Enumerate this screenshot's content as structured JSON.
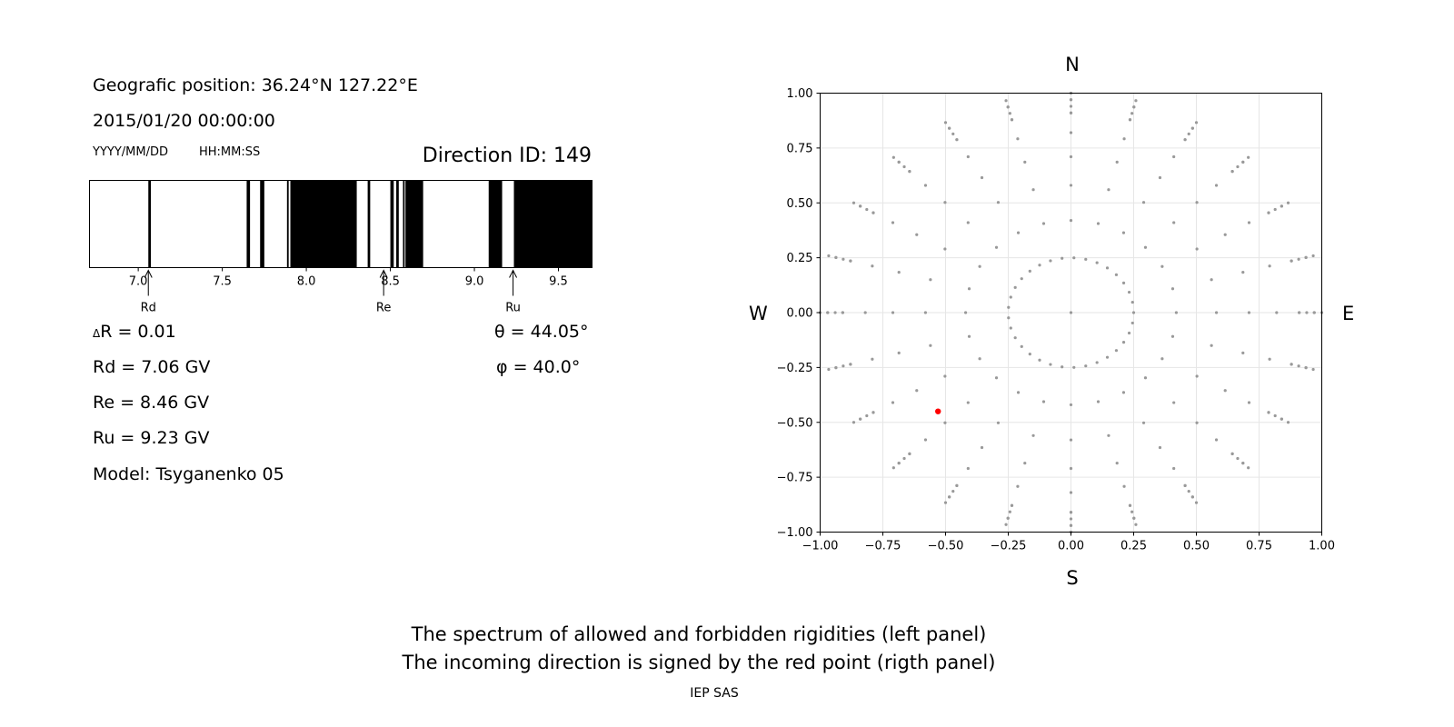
{
  "left_panel": {
    "position_text": "Geografic position: 36.24°N 127.22°E",
    "datetime_text": "2015/01/20 00:00:00",
    "date_format": "YYYY/MM/DD",
    "time_format": "HH:MM:SS",
    "direction_id": "Direction ID: 149",
    "delta_r_symbol": "Δ",
    "delta_r": "R = 0.01",
    "rd": "Rd = 7.06 GV",
    "re": "Re = 8.46 GV",
    "ru": "Ru = 9.23 GV",
    "model": "Model: Tsyganenko 05",
    "theta_symbol": "θ",
    "theta": "= 44.05°",
    "phi_symbol": "φ",
    "phi": "= 40.0°"
  },
  "right_panel": {
    "north": "N",
    "south": "S",
    "west": "W",
    "east": "E"
  },
  "footer": {
    "caption_line1": "The spectrum of allowed and forbidden rigidities (left panel)",
    "caption_line2": "The incoming direction is signed by the red point (rigth panel)",
    "credit": "IEP SAS"
  },
  "colors": {
    "forbidden": "#000000",
    "allowed": "#ffffff",
    "grid_points": "#999999",
    "selected_point": "#ff0000",
    "grid_lines": "#e6e6e6"
  },
  "chart_data": [
    {
      "type": "bar",
      "name": "rigidity-spectrum",
      "xlim": [
        6.71,
        9.7
      ],
      "xticks": [
        7.0,
        7.5,
        8.0,
        8.5,
        9.0,
        9.5
      ],
      "xtick_labels": [
        "7.0",
        "7.5",
        "8.0",
        "8.5",
        "9.0",
        "9.5"
      ],
      "forbidden_intervals": [
        [
          7.06,
          7.075
        ],
        [
          7.645,
          7.665
        ],
        [
          7.725,
          7.75
        ],
        [
          7.885,
          7.895
        ],
        [
          7.905,
          8.3
        ],
        [
          8.365,
          8.38
        ],
        [
          8.5,
          8.52
        ],
        [
          8.535,
          8.55
        ],
        [
          8.575,
          8.585
        ],
        [
          8.59,
          8.695
        ],
        [
          9.085,
          9.165
        ],
        [
          9.235,
          9.7
        ]
      ],
      "markers": [
        {
          "label": "Rd",
          "value": 7.06
        },
        {
          "label": "Re",
          "value": 8.46
        },
        {
          "label": "Ru",
          "value": 9.23
        }
      ]
    },
    {
      "type": "scatter",
      "name": "incoming-directions",
      "xlim": [
        -1.0,
        1.0
      ],
      "ylim": [
        -1.0,
        1.0
      ],
      "xticks": [
        "−1.00",
        "−0.75",
        "−0.50",
        "−0.25",
        "0.00",
        "0.25",
        "0.50",
        "0.75",
        "1.00"
      ],
      "yticks": [
        "1.00",
        "0.75",
        "0.50",
        "0.25",
        "0.00",
        "−0.25",
        "−0.50",
        "−0.75",
        "−1.00"
      ],
      "grid": true,
      "grid_radii": [
        0.25,
        0.42,
        0.58,
        0.71,
        0.82,
        0.91,
        0.97,
        1.0
      ],
      "grid_azimuth_step_deg": 15,
      "radial_extra_step": 0.03,
      "selected_point": {
        "x": -0.53,
        "y": -0.45
      }
    }
  ]
}
